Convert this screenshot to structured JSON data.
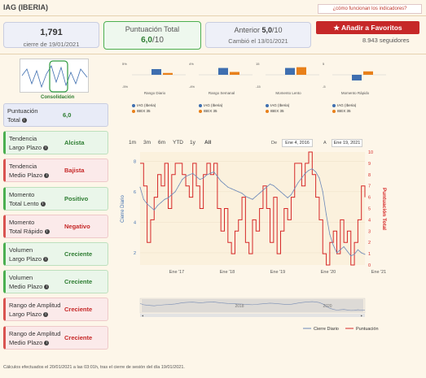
{
  "page": {
    "title": "IAG (IBERIA)",
    "help_link": "¿cómo funcionan los indicadores?"
  },
  "cards": {
    "price": {
      "value": "1,791",
      "sub": "cierre de 19/01/2021"
    },
    "score": {
      "label": "Puntuación Total",
      "value": "6,0",
      "suffix": "/10"
    },
    "previous": {
      "label": "Anterior",
      "value": "5,0",
      "suffix": "/10",
      "sub": "Cambió el 13/01/2021"
    }
  },
  "favorites": {
    "button": "Añadir a Favoritos",
    "followers": "8.943 seguidores"
  },
  "thumbnail": {
    "label": "Consolidación"
  },
  "indicators": [
    {
      "label1": "Puntuación",
      "label2": "Total",
      "value": "6,0",
      "style": "blue"
    },
    {
      "label1": "Tendencia",
      "label2": "Largo Plazo",
      "value": "Alcista",
      "style": "green"
    },
    {
      "label1": "Tendencia",
      "label2": "Medio Plazo",
      "value": "Bajista",
      "style": "red"
    },
    {
      "label1": "Momento",
      "label2": "Total Lento",
      "value": "Positivo",
      "style": "green"
    },
    {
      "label1": "Momento",
      "label2": "Total Rápido",
      "value": "Negativo",
      "style": "red"
    },
    {
      "label1": "Volumen",
      "label2": "Largo Plazo",
      "value": "Creciente",
      "style": "green"
    },
    {
      "label1": "Volumen",
      "label2": "Medio Plazo",
      "value": "Creciente",
      "style": "green"
    },
    {
      "label1": "Rango de Amplitud",
      "label2": "Largo Plazo",
      "value": "Creciente",
      "style": "red"
    },
    {
      "label1": "Rango de Amplitud",
      "label2": "Medio Plazo",
      "value": "Creciente",
      "style": "red"
    }
  ],
  "mini_charts": [
    {
      "caption": "Rango Diario",
      "ticks": [
        "5%",
        "",
        "-5%"
      ],
      "iag": 2.5,
      "ibex": 0.8,
      "min": -5,
      "max": 5
    },
    {
      "caption": "Rango Semanal",
      "ticks": [
        "4%",
        "",
        "-4%"
      ],
      "iag": 2.4,
      "ibex": 1.0,
      "min": -4,
      "max": 4
    },
    {
      "caption": "Momento Lento",
      "ticks": [
        "15",
        "",
        "-15"
      ],
      "iag": 9,
      "ibex": 10,
      "min": -15,
      "max": 15
    },
    {
      "caption": "Momento Rápido",
      "ticks": [
        "5",
        "",
        "-5"
      ],
      "iag": -2.5,
      "ibex": 1.5,
      "min": -5,
      "max": 5
    }
  ],
  "mini_legend": {
    "iag": "IAG (Iberia)",
    "ibex": "IBEX 35"
  },
  "range_buttons": [
    "1m",
    "3m",
    "6m",
    "YTD",
    "1y",
    "All"
  ],
  "date_range": {
    "from_label": "De",
    "from": "Ene 4, 2016",
    "to_label": "A",
    "to": "Ene 19, 2021"
  },
  "colors": {
    "price": "#6b88b8",
    "score": "#d62828",
    "iag": "#3f6fb0",
    "ibex": "#e8801a"
  },
  "chart_data": {
    "type": "line",
    "x_ticks": [
      "Ene '17",
      "Ene '18",
      "Ene '19",
      "Ene '20",
      "Ene '21"
    ],
    "y_left_label": "Cierre Diario",
    "y_right_label": "Puntuación Total",
    "y_left_ticks": [
      "8",
      "6",
      "4",
      "2"
    ],
    "y_right_ticks": [
      "10",
      "9",
      "8",
      "7",
      "6",
      "5",
      "4",
      "3",
      "2",
      "1",
      "0"
    ],
    "y_left_range": [
      1.2,
      8.6
    ],
    "y_right_range": [
      0,
      10
    ],
    "navigator_ticks": [
      "2018",
      "2020"
    ],
    "legend": [
      "Cierre Diario",
      "Puntuación"
    ],
    "series": [
      {
        "name": "Cierre Diario",
        "values": [
          6.3,
          5.5,
          5.2,
          5.0,
          4.8,
          5.1,
          5.3,
          5.5,
          5.6,
          5.8,
          6.0,
          6.4,
          6.8,
          7.0,
          7.1,
          7.2,
          7.0,
          6.8,
          6.9,
          7.1,
          7.2,
          7.3,
          7.0,
          6.7,
          6.5,
          6.3,
          6.2,
          6.1,
          6.0,
          5.9,
          5.7,
          5.6,
          5.5,
          5.7,
          5.9,
          6.1,
          6.3,
          6.5,
          6.4,
          6.2,
          6.0,
          5.8,
          5.6,
          5.8,
          6.2,
          6.6,
          6.9,
          7.2,
          7.4,
          7.5,
          7.3,
          6.9,
          6.0,
          4.5,
          3.2,
          2.5,
          2.0,
          2.2,
          2.4,
          2.1,
          1.8,
          1.9,
          2.2,
          2.0,
          1.9
        ]
      },
      {
        "name": "Puntuación",
        "values": [
          9,
          7,
          2,
          4,
          6,
          8,
          7,
          9,
          5,
          8,
          9,
          9,
          8,
          7,
          6,
          9,
          7,
          5,
          8,
          9,
          8,
          9,
          5,
          3,
          5,
          2,
          1,
          3,
          4,
          6,
          2,
          1,
          4,
          3,
          5,
          7,
          5,
          2,
          6,
          1,
          3,
          5,
          4,
          6,
          9,
          9,
          7,
          9,
          10,
          8,
          6,
          4,
          1,
          0,
          2,
          3,
          1,
          4,
          2,
          3,
          0,
          2,
          4,
          7,
          6
        ]
      }
    ]
  }
}
